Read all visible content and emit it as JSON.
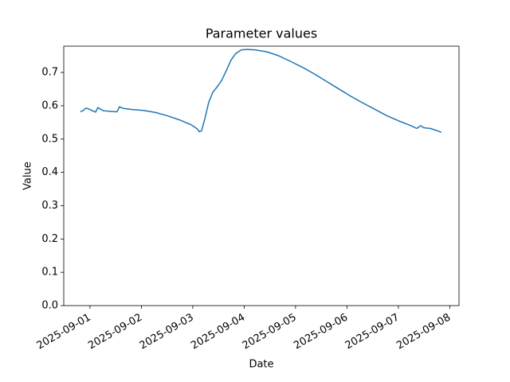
{
  "chart_data": {
    "type": "line",
    "title": "Parameter values",
    "x_label": "Date",
    "y_label": "Value",
    "x": [
      20331.814,
      20331.86,
      20331.922,
      20331.984,
      20332.047,
      20332.109,
      20332.155,
      20332.202,
      20332.264,
      20332.419,
      20332.527,
      20332.574,
      20332.651,
      20332.806,
      20333.039,
      20333.271,
      20333.504,
      20333.736,
      20333.969,
      20334.093,
      20334.124,
      20334.171,
      20334.233,
      20334.31,
      20334.388,
      20334.465,
      20334.558,
      20334.651,
      20334.744,
      20334.837,
      20334.946,
      20335.054,
      20335.209,
      20335.442,
      20335.674,
      20335.907,
      20336.14,
      20336.372,
      20336.605,
      20336.837,
      20337.07,
      20337.302,
      20337.535,
      20337.767,
      20338.0,
      20338.233,
      20338.357,
      20338.434,
      20338.496,
      20338.62,
      20338.775,
      20338.837
    ],
    "series": [
      {
        "color": "#1f77b4",
        "values": [
          0.582,
          0.585,
          0.593,
          0.59,
          0.585,
          0.581,
          0.595,
          0.59,
          0.585,
          0.583,
          0.582,
          0.597,
          0.592,
          0.589,
          0.586,
          0.58,
          0.57,
          0.558,
          0.543,
          0.53,
          0.522,
          0.525,
          0.56,
          0.61,
          0.64,
          0.655,
          0.675,
          0.705,
          0.737,
          0.757,
          0.768,
          0.769,
          0.768,
          0.762,
          0.75,
          0.733,
          0.715,
          0.695,
          0.673,
          0.651,
          0.629,
          0.609,
          0.59,
          0.571,
          0.555,
          0.541,
          0.532,
          0.54,
          0.534,
          0.532,
          0.524,
          0.52
        ]
      }
    ],
    "xlim": [
      20331.49,
      20339.18
    ],
    "xticks": [
      {
        "value": 20332,
        "label": "2025-09-01"
      },
      {
        "value": 20333,
        "label": "2025-09-02"
      },
      {
        "value": 20334,
        "label": "2025-09-03"
      },
      {
        "value": 20335,
        "label": "2025-09-04"
      },
      {
        "value": 20336,
        "label": "2025-09-05"
      },
      {
        "value": 20337,
        "label": "2025-09-06"
      },
      {
        "value": 20338,
        "label": "2025-09-07"
      },
      {
        "value": 20339,
        "label": "2025-09-08"
      }
    ],
    "ylim": [
      0,
      0.779
    ],
    "yticks": [
      {
        "value": 0,
        "label": "0.0"
      },
      0.1,
      0.2,
      0.3,
      0.4,
      0.5,
      0.6,
      0.7
    ]
  }
}
